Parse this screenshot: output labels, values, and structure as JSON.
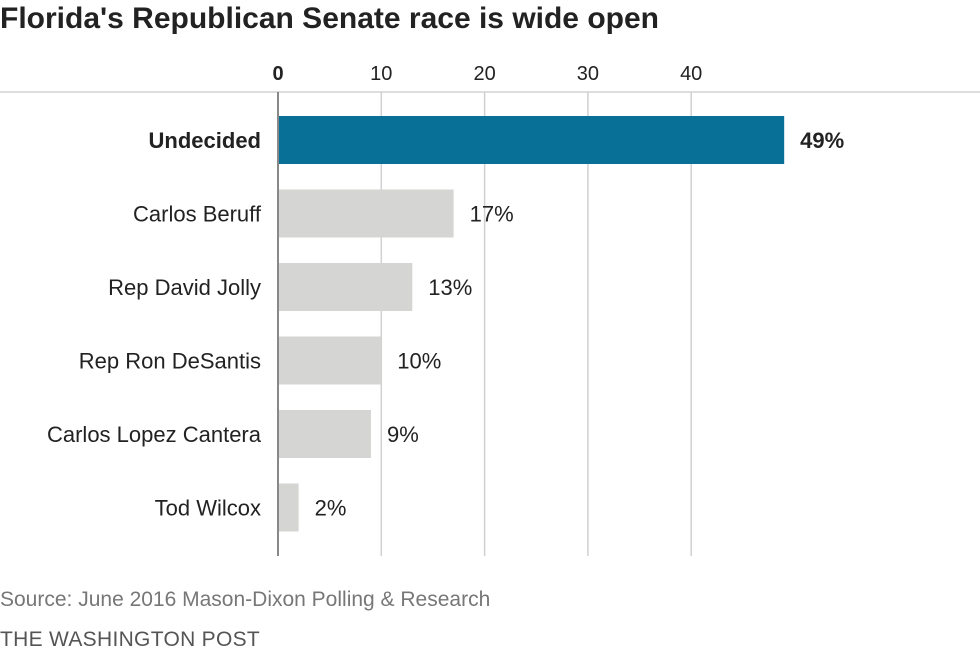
{
  "title": "Florida's Republican Senate race is wide open",
  "source": "Source: June 2016 Mason-Dixon Polling & Research",
  "credit": "THE WASHINGTON POST",
  "colors": {
    "highlight": "#086f97",
    "bar": "#d5d5d3",
    "grid": "#d0d0d0",
    "axis": "#888888",
    "text": "#222222"
  },
  "chart_data": {
    "type": "bar",
    "orientation": "horizontal",
    "categories": [
      "Undecided",
      "Carlos Beruff",
      "Rep David Jolly",
      "Rep Ron DeSantis",
      "Carlos Lopez Cantera",
      "Tod Wilcox"
    ],
    "values": [
      49,
      17,
      13,
      10,
      9,
      2
    ],
    "value_labels": [
      "49%",
      "17%",
      "13%",
      "10%",
      "9%",
      "2%"
    ],
    "highlighted": [
      "Undecided"
    ],
    "x_ticks": [
      0,
      10,
      20,
      30,
      40
    ],
    "x_tick_labels": [
      "0",
      "10",
      "20",
      "30",
      "40"
    ],
    "xlim": [
      0,
      49
    ],
    "x_axis_position": "top",
    "grid": true,
    "legend": "none"
  }
}
